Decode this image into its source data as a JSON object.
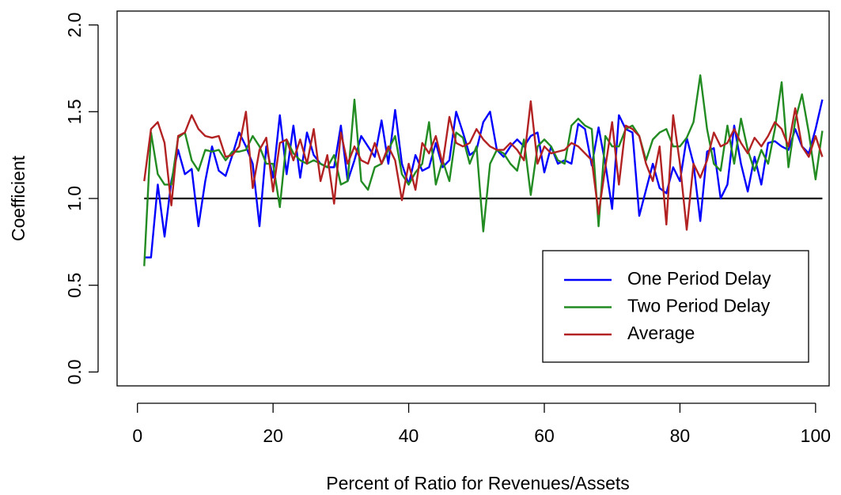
{
  "chart_data": {
    "type": "line",
    "xlabel": "Percent of Ratio for Revenues/Assets",
    "ylabel": "Coefficient",
    "xlim": [
      -3,
      102
    ],
    "ylim": [
      -0.08,
      2.08
    ],
    "xticks": [
      0,
      20,
      40,
      60,
      80,
      100
    ],
    "yticks": [
      {
        "value": 0,
        "label": "0.0"
      },
      {
        "value": 0.5,
        "label": "0.5"
      },
      {
        "value": 1,
        "label": "1.0"
      },
      {
        "value": 1.5,
        "label": "1.5"
      },
      {
        "value": 2,
        "label": "2.0"
      }
    ],
    "legend": "bottomright",
    "reference_line": {
      "y": 1,
      "x": [
        1,
        101
      ],
      "color": "#000000"
    },
    "x": [
      1,
      2,
      3,
      4,
      5,
      6,
      7,
      8,
      9,
      10,
      11,
      12,
      13,
      14,
      15,
      16,
      17,
      18,
      19,
      20,
      21,
      22,
      23,
      24,
      25,
      26,
      27,
      28,
      29,
      30,
      31,
      32,
      33,
      34,
      35,
      36,
      37,
      38,
      39,
      40,
      41,
      42,
      43,
      44,
      45,
      46,
      47,
      48,
      49,
      50,
      51,
      52,
      53,
      54,
      55,
      56,
      57,
      58,
      59,
      60,
      61,
      62,
      63,
      64,
      65,
      66,
      67,
      68,
      69,
      70,
      71,
      72,
      73,
      74,
      75,
      76,
      77,
      78,
      79,
      80,
      81,
      82,
      83,
      84,
      85,
      86,
      87,
      88,
      89,
      90,
      91,
      92,
      93,
      94,
      95,
      96,
      97,
      98,
      99,
      100,
      101
    ],
    "series": [
      {
        "name": "One Period Delay",
        "color": "#0000ff",
        "values": [
          0.66,
          0.66,
          1.08,
          0.78,
          1.1,
          1.28,
          1.14,
          1.17,
          0.84,
          1.1,
          1.3,
          1.16,
          1.13,
          1.25,
          1.38,
          1.3,
          1.2,
          0.84,
          1.3,
          1.12,
          1.48,
          1.14,
          1.42,
          1.12,
          1.38,
          1.25,
          1.2,
          1.18,
          1.18,
          1.42,
          1.1,
          1.22,
          1.36,
          1.3,
          1.24,
          1.45,
          1.2,
          1.51,
          1.2,
          1.08,
          1.25,
          1.16,
          1.18,
          1.32,
          1.18,
          1.22,
          1.5,
          1.38,
          1.25,
          1.28,
          1.44,
          1.5,
          1.28,
          1.24,
          1.3,
          1.34,
          1.3,
          1.36,
          1.38,
          1.15,
          1.3,
          1.2,
          1.22,
          1.2,
          1.43,
          1.4,
          1.19,
          1.41,
          1.2,
          0.94,
          1.48,
          1.4,
          1.38,
          0.9,
          1.05,
          1.2,
          1.06,
          1.03,
          1.18,
          1.1,
          1.35,
          1.2,
          0.87,
          1.27,
          1.29,
          1.0,
          1.08,
          1.42,
          1.2,
          1.04,
          1.24,
          1.08,
          1.32,
          1.33,
          1.3,
          1.28,
          1.4,
          1.3,
          1.26,
          1.4,
          1.57
        ]
      },
      {
        "name": "Two Period Delay",
        "color": "#228b22",
        "values": [
          0.61,
          1.38,
          1.14,
          1.08,
          1.08,
          1.35,
          1.38,
          1.22,
          1.16,
          1.28,
          1.27,
          1.28,
          1.22,
          1.27,
          1.27,
          1.28,
          1.36,
          1.3,
          1.2,
          1.2,
          0.95,
          1.34,
          1.26,
          1.22,
          1.2,
          1.22,
          1.2,
          1.18,
          1.25,
          1.08,
          1.1,
          1.57,
          1.1,
          1.05,
          1.18,
          1.2,
          1.28,
          1.36,
          1.14,
          1.08,
          1.15,
          1.2,
          1.44,
          1.08,
          1.22,
          1.1,
          1.38,
          1.35,
          1.2,
          1.3,
          0.81,
          1.2,
          1.28,
          1.26,
          1.2,
          1.16,
          1.34,
          1.02,
          1.3,
          1.34,
          1.3,
          1.22,
          1.2,
          1.42,
          1.46,
          1.42,
          1.4,
          0.84,
          1.36,
          1.3,
          1.3,
          1.4,
          1.42,
          1.36,
          1.22,
          1.34,
          1.38,
          1.4,
          1.3,
          1.3,
          1.35,
          1.44,
          1.71,
          1.4,
          1.2,
          1.16,
          1.42,
          1.2,
          1.46,
          1.28,
          1.16,
          1.28,
          1.2,
          1.4,
          1.67,
          1.18,
          1.45,
          1.6,
          1.38,
          1.11,
          1.39
        ]
      },
      {
        "name": "Average",
        "color": "#b22222",
        "values": [
          1.1,
          1.4,
          1.44,
          1.32,
          0.96,
          1.36,
          1.38,
          1.48,
          1.4,
          1.36,
          1.35,
          1.36,
          1.24,
          1.25,
          1.3,
          1.5,
          1.06,
          1.28,
          1.35,
          1.04,
          1.32,
          1.34,
          1.22,
          1.34,
          1.2,
          1.4,
          1.1,
          1.25,
          0.97,
          1.38,
          1.2,
          1.3,
          1.22,
          1.2,
          1.32,
          1.2,
          1.3,
          1.22,
          0.99,
          1.2,
          1.05,
          1.32,
          1.26,
          1.36,
          1.2,
          1.47,
          1.32,
          1.3,
          1.32,
          1.4,
          1.34,
          1.3,
          1.28,
          1.28,
          1.32,
          1.28,
          1.22,
          1.56,
          1.2,
          1.3,
          1.26,
          1.27,
          1.28,
          1.32,
          1.3,
          1.26,
          1.22,
          0.91,
          1.18,
          1.44,
          1.08,
          1.42,
          1.4,
          1.36,
          1.2,
          1.1,
          1.3,
          0.85,
          1.48,
          1.2,
          0.82,
          1.2,
          1.12,
          1.22,
          1.38,
          1.3,
          1.32,
          1.4,
          1.32,
          1.26,
          1.35,
          1.3,
          1.36,
          1.44,
          1.4,
          1.3,
          1.52,
          1.3,
          1.24,
          1.36,
          1.24
        ]
      }
    ]
  }
}
